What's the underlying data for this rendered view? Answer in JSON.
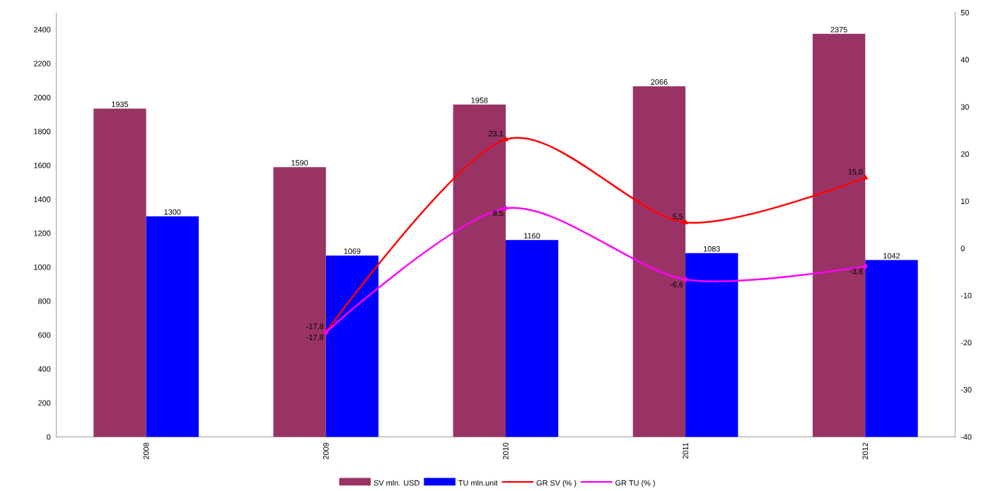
{
  "chart_data": {
    "type": "bar",
    "categories": [
      "2008",
      "2009",
      "2010",
      "2011",
      "2012"
    ],
    "ylim": [
      0,
      2500
    ],
    "yticks": [
      0,
      200,
      400,
      600,
      800,
      1000,
      1200,
      1400,
      1600,
      1800,
      2000,
      2200,
      2400
    ],
    "y2lim": [
      -40,
      50
    ],
    "y2ticks": [
      -40,
      -30,
      -20,
      -10,
      0,
      10,
      20,
      30,
      40,
      50
    ],
    "legend": "bottom",
    "series": [
      {
        "name": "SV mln. USD",
        "color": "#993366",
        "values": [
          1935,
          1590,
          1958,
          2066,
          2375
        ],
        "value_labels": [
          "1935",
          "1590",
          "1958",
          "2066",
          "2375"
        ]
      },
      {
        "name": "TU mln.unit",
        "color": "#0000ff",
        "values": [
          1300,
          1069,
          1160,
          1083,
          1042
        ],
        "value_labels": [
          "1300",
          "1069",
          "1160",
          "1083",
          "1042"
        ]
      },
      {
        "name": "GR SV (% )",
        "type": "line",
        "axis": "y2",
        "color": "#ff0000",
        "marker": "triangle",
        "values": [
          null,
          -17.8,
          23.1,
          5.5,
          15.0
        ],
        "value_labels": [
          null,
          "-17,8",
          "23,1",
          "5,5",
          "15,0"
        ]
      },
      {
        "name": "GR TU (% )",
        "type": "line",
        "axis": "y2",
        "color": "#ff00ff",
        "marker": "diamond",
        "values": [
          null,
          -17.8,
          8.5,
          -6.6,
          -3.8
        ],
        "value_labels": [
          null,
          "-17,8",
          "8,5",
          "-6,6",
          "-3,8"
        ]
      }
    ]
  }
}
